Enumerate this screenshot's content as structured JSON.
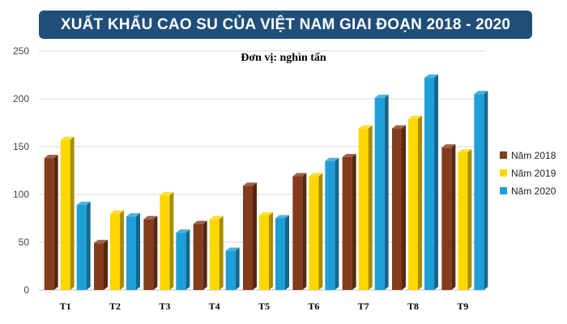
{
  "chart_data": {
    "type": "bar",
    "title": "XUẤT KHẨU CAO SU CỦA VIỆT NAM GIAI ĐOẠN 2018 - 2020",
    "subtitle": "Đơn vị: nghìn tấn",
    "categories": [
      "T1",
      "T2",
      "T3",
      "T4",
      "T5",
      "T6",
      "T7",
      "T8",
      "T9"
    ],
    "series": [
      {
        "name": "Năm 2018",
        "color": "#843c1c",
        "values": [
          138,
          49,
          74,
          69,
          109,
          119,
          139,
          169,
          149
        ]
      },
      {
        "name": "Năm 2019",
        "color": "#ffd700",
        "values": [
          157,
          80,
          99,
          74,
          78,
          119,
          169,
          179,
          144
        ]
      },
      {
        "name": "Năm 2020",
        "color": "#1f9fd7",
        "values": [
          89,
          77,
          60,
          41,
          75,
          135,
          201,
          222,
          205
        ]
      }
    ],
    "y_ticks": [
      "0",
      "50",
      "100",
      "150",
      "200",
      "250"
    ],
    "ylim": [
      0,
      250
    ],
    "grid": true,
    "legend_position": "right"
  }
}
